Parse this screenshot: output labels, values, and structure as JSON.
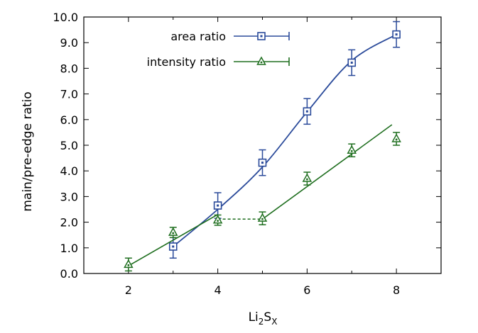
{
  "chart_data": {
    "type": "line",
    "xlabel": {
      "main": "Li",
      "sub1": "2",
      "mid": "S",
      "sub2": "X"
    },
    "ylabel": "main/pre-edge ratio",
    "xlim": [
      1,
      9
    ],
    "ylim": [
      0,
      10
    ],
    "xticks": [
      "2",
      "4",
      "6",
      "8"
    ],
    "yticks": [
      "0.0",
      "1.0",
      "2.0",
      "3.0",
      "4.0",
      "5.0",
      "6.0",
      "7.0",
      "8.0",
      "9.0",
      "10.0"
    ],
    "grid": false,
    "legend_position": "top-left",
    "series": [
      {
        "name": "area ratio",
        "color": "#2a4a9a",
        "marker": "square",
        "points": [
          {
            "x": 3,
            "y": 1.05,
            "err": 0.45
          },
          {
            "x": 4,
            "y": 2.65,
            "err": 0.5
          },
          {
            "x": 5,
            "y": 4.32,
            "err": 0.5
          },
          {
            "x": 6,
            "y": 6.32,
            "err": 0.5
          },
          {
            "x": 7,
            "y": 8.22,
            "err": 0.5
          },
          {
            "x": 8,
            "y": 9.32,
            "err": 0.5
          }
        ],
        "fit": [
          [
            3,
            1.05
          ],
          [
            4,
            2.5
          ],
          [
            5,
            4.15
          ],
          [
            6,
            6.3
          ],
          [
            7,
            8.3
          ],
          [
            8,
            9.32
          ]
        ]
      },
      {
        "name": "intensity ratio",
        "color": "#1e6e1e",
        "marker": "triangle",
        "points": [
          {
            "x": 2,
            "y": 0.35,
            "err": 0.25
          },
          {
            "x": 3,
            "y": 1.6,
            "err": 0.2
          },
          {
            "x": 4,
            "y": 2.08,
            "err": 0.2
          },
          {
            "x": 5,
            "y": 2.15,
            "err": 0.25
          },
          {
            "x": 6,
            "y": 3.7,
            "err": 0.25
          },
          {
            "x": 7,
            "y": 4.8,
            "err": 0.25
          },
          {
            "x": 8,
            "y": 5.25,
            "err": 0.25
          }
        ],
        "fit_solid_1": [
          [
            2,
            0.3
          ],
          [
            4,
            2.3
          ]
        ],
        "fit_dashed": [
          [
            4,
            2.12
          ],
          [
            5,
            2.12
          ]
        ],
        "fit_solid_2": [
          [
            5,
            2.12
          ],
          [
            7.9,
            5.8
          ]
        ]
      }
    ]
  }
}
